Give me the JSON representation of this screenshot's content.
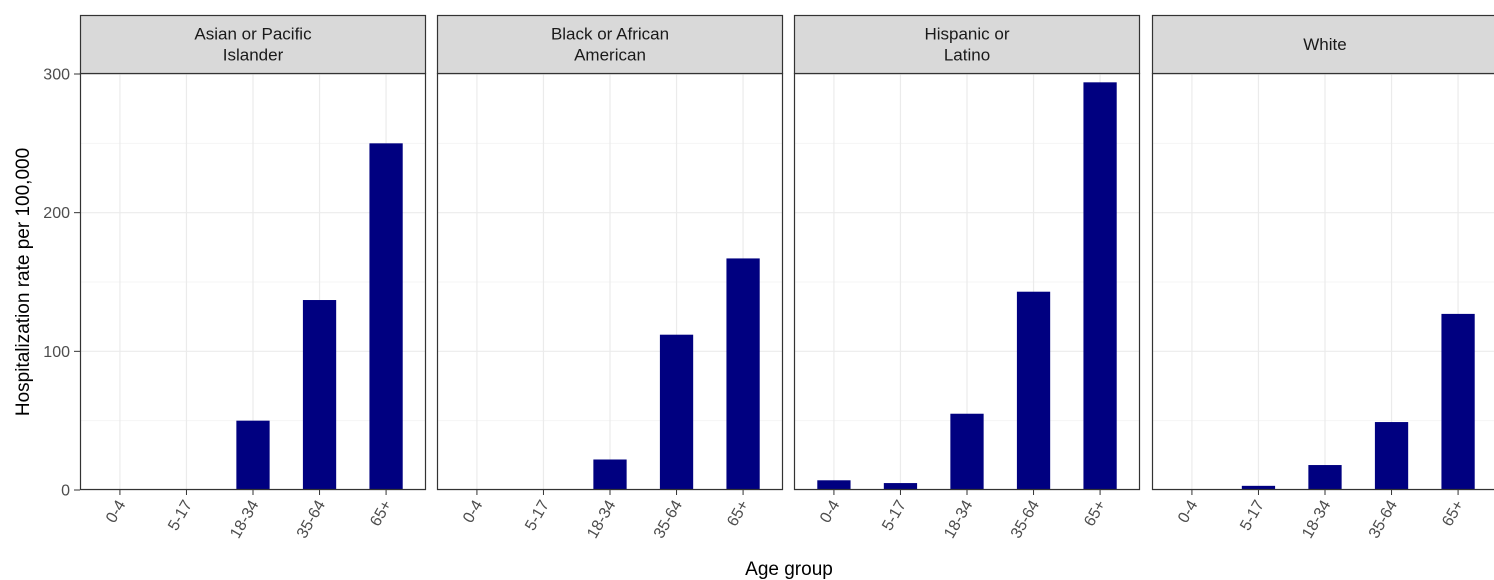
{
  "chart_data": {
    "type": "bar",
    "xlabel": "Age group",
    "ylabel": "Hospitalization rate per 100,000",
    "ylim": [
      0,
      300
    ],
    "yticks": [
      "0",
      "100",
      "200",
      "300"
    ],
    "categories": [
      "0-4",
      "5-17",
      "18-34",
      "35-64",
      "65+"
    ],
    "grid": true,
    "legend": "none",
    "colors": {
      "bar": "#000080",
      "strip_bg": "#d9d9d9",
      "panel_border": "#333333",
      "grid_major": "#ebebeb",
      "grid_minor": "#f4f4f4"
    },
    "facets": [
      {
        "label_lines": [
          "Asian or Pacific",
          "Islander"
        ],
        "values": [
          0,
          0,
          50,
          137,
          250
        ]
      },
      {
        "label_lines": [
          "Black or African",
          "American"
        ],
        "values": [
          0,
          0,
          22,
          112,
          167
        ]
      },
      {
        "label_lines": [
          "Hispanic or",
          "Latino"
        ],
        "values": [
          7,
          5,
          55,
          143,
          294
        ]
      },
      {
        "label_lines": [
          "White"
        ],
        "values": [
          0,
          3,
          18,
          49,
          127
        ]
      }
    ]
  }
}
